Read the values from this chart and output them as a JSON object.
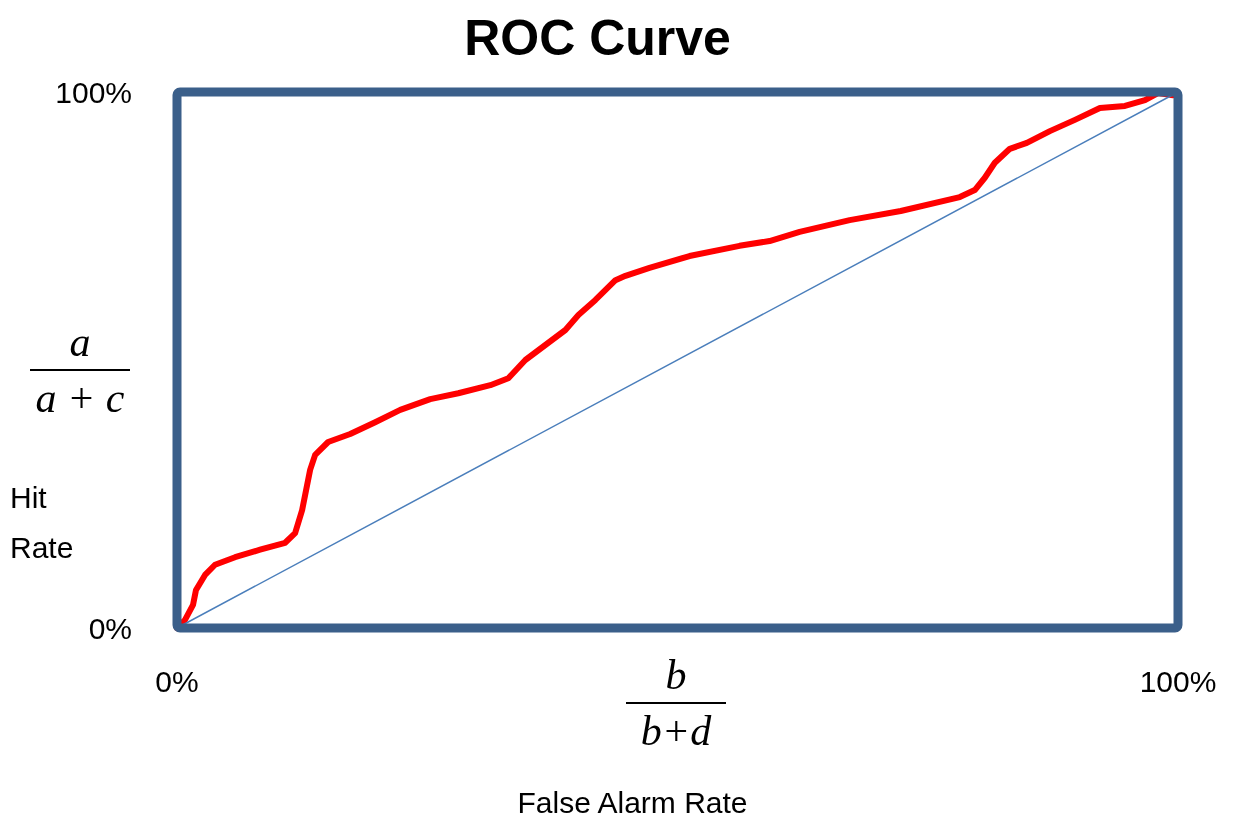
{
  "chart_data": {
    "type": "line",
    "title": "ROC Curve",
    "xlabel": "False Alarm Rate",
    "ylabel": "Hit Rate",
    "annotations": [
      "a",
      "a + c",
      "b",
      "b+d"
    ],
    "xlim": [
      0,
      100
    ],
    "ylim": [
      0,
      100
    ],
    "xticks": [
      {
        "value": 0,
        "label": "0%"
      },
      {
        "value": 100,
        "label": "100%"
      }
    ],
    "yticks": [
      {
        "value": 0,
        "label": "0%"
      },
      {
        "value": 100,
        "label": "100%"
      }
    ],
    "series": [
      {
        "color": "#ff0000",
        "x": [
          0,
          0.8,
          1.6,
          1.9,
          2.8,
          3.8,
          5.8,
          8.3,
          10.8,
          11.8,
          12.5,
          13.3,
          13.8,
          15.1,
          17.3,
          19.8,
          22.3,
          25.3,
          28.1,
          31.3,
          33.1,
          34.8,
          36.8,
          38.8,
          40.1,
          41.8,
          43.8,
          44.8,
          47.2,
          51.2,
          56.2,
          59.2,
          62.2,
          67.2,
          72.3,
          78.2,
          79.7,
          80.7,
          81.7,
          83.2,
          84.9,
          87.2,
          89.7,
          92.2,
          94.7,
          96.7,
          98.0,
          99.5
        ],
        "values": [
          0,
          1.5,
          4.3,
          7.1,
          9.9,
          11.8,
          13.2,
          14.6,
          15.9,
          17.7,
          22.0,
          29.5,
          32.3,
          34.7,
          36.2,
          38.4,
          40.7,
          42.7,
          43.8,
          45.3,
          46.6,
          50.0,
          52.8,
          55.6,
          58.4,
          61.2,
          64.9,
          65.7,
          67.2,
          69.4,
          71.3,
          72.2,
          73.9,
          76.1,
          77.8,
          80.4,
          81.7,
          84.0,
          86.8,
          89.4,
          90.5,
          92.7,
          94.8,
          97.0,
          97.4,
          98.5,
          99.8,
          99.4
        ]
      },
      {
        "color": "#4a7ebb",
        "x": [
          0,
          100
        ],
        "values": [
          0,
          100
        ]
      }
    ]
  }
}
